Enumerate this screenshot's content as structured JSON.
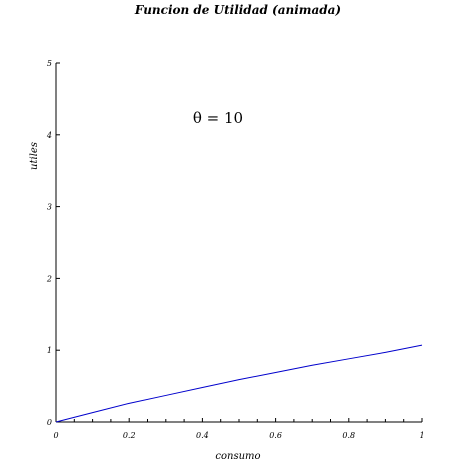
{
  "chart_data": {
    "type": "line",
    "title": "Funcion de Utilidad (animada)",
    "xlabel": "consumo",
    "ylabel": "utiles",
    "xlim": [
      0,
      1
    ],
    "ylim": [
      0,
      5
    ],
    "x_ticks": [
      0,
      0.2,
      0.4,
      0.6,
      0.8,
      1
    ],
    "y_ticks": [
      0,
      1,
      2,
      3,
      4,
      5
    ],
    "x_tick_labels": [
      "0",
      "0.2",
      "0.4",
      "0.6",
      "0.8",
      "1"
    ],
    "y_tick_labels": [
      "0",
      "1",
      "2",
      "3",
      "4",
      "5"
    ],
    "grid": false,
    "annotation": "θ = 10",
    "series": [
      {
        "color": "#0000cc",
        "x": [
          0,
          0.1,
          0.2,
          0.3,
          0.4,
          0.5,
          0.6,
          0.7,
          0.8,
          0.9,
          1.0
        ],
        "values": [
          0,
          0.13,
          0.26,
          0.37,
          0.48,
          0.59,
          0.69,
          0.79,
          0.88,
          0.97,
          1.07
        ]
      }
    ]
  }
}
